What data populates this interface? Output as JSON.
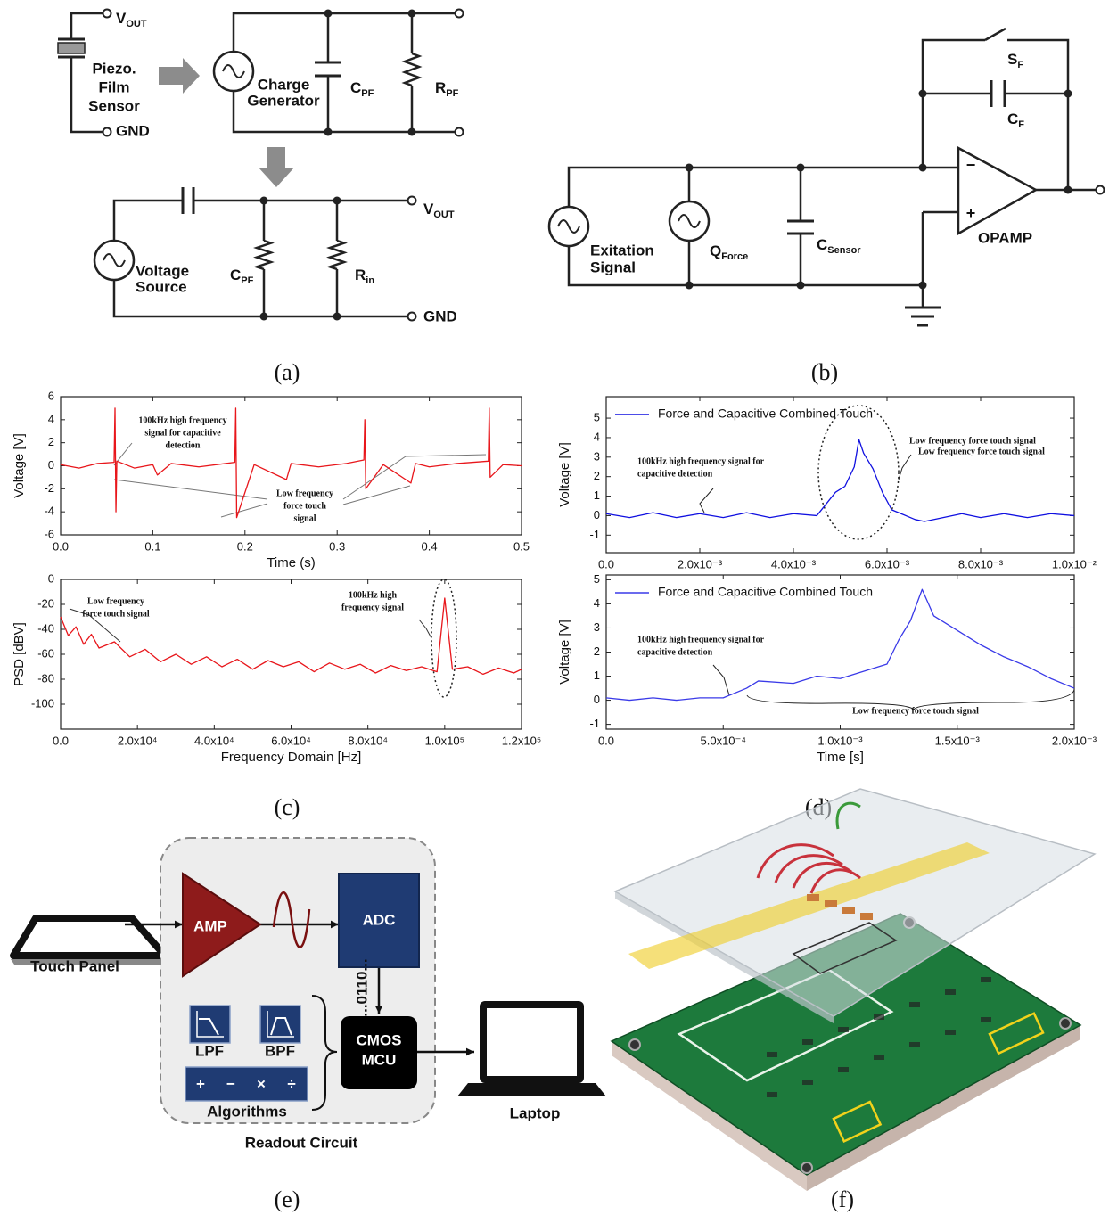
{
  "panels": {
    "a": {
      "label": "(a)",
      "vout_top": {
        "main": "V",
        "sub": "OUT"
      },
      "gnd_top": "GND",
      "sensor": [
        "Piezo.",
        "Film",
        "Sensor"
      ],
      "generator": [
        "Charge",
        "Generator"
      ],
      "cpf_top": {
        "main": "C",
        "sub": "PF"
      },
      "rpf": {
        "main": "R",
        "sub": "PF"
      },
      "source": [
        "Voltage",
        "Source"
      ],
      "cpf_bottom": {
        "main": "C",
        "sub": "PF"
      },
      "rin": {
        "main": "R",
        "sub": "in"
      },
      "vout_bottom": {
        "main": "V",
        "sub": "OUT"
      },
      "gnd_bottom": "GND"
    },
    "b": {
      "label": "(b)",
      "sf": {
        "main": "S",
        "sub": "F"
      },
      "cf": {
        "main": "C",
        "sub": "F"
      },
      "excitation": [
        "Exitation",
        "Signal"
      ],
      "qforce": {
        "main": "Q",
        "sub": "Force"
      },
      "csensor": {
        "main": "C",
        "sub": "Sensor"
      },
      "minus": "−",
      "plus": "+",
      "opamp": "OPAMP"
    },
    "c": {
      "label": "(c)"
    },
    "d": {
      "label": "(d)"
    },
    "e": {
      "label": "(e)",
      "touch_panel": "Touch Panel",
      "amp": "AMP",
      "adc": "ADC",
      "bits": "...0110...",
      "lpf": "LPF",
      "bpf": "BPF",
      "ops": [
        "+",
        "−",
        "×",
        "÷"
      ],
      "algorithms": "Algorithms",
      "mcu": [
        "CMOS",
        "MCU"
      ],
      "laptop": "Laptop",
      "readout": "Readout Circuit"
    },
    "f": {
      "label": "(f)"
    }
  },
  "chart_data": [
    {
      "type": "line",
      "xlabel": "Time (s)",
      "ylabel": "Voltage [V]",
      "xlim": [
        0,
        0.5
      ],
      "ylim": [
        -6,
        6
      ],
      "xticks": [
        {
          "value": 0,
          "label": "0.0"
        },
        0.1,
        0.2,
        0.3,
        0.4,
        0.5
      ],
      "yticks": [
        -6,
        -4,
        -2,
        0,
        2,
        4,
        6
      ],
      "x": [
        0,
        0.02,
        0.04,
        0.058,
        0.059,
        0.06,
        0.061,
        0.08,
        0.1,
        0.105,
        0.12,
        0.15,
        0.189,
        0.19,
        0.191,
        0.21,
        0.245,
        0.25,
        0.28,
        0.31,
        0.329,
        0.33,
        0.331,
        0.35,
        0.38,
        0.385,
        0.4,
        0.43,
        0.464,
        0.465,
        0.466,
        0.48,
        0.5
      ],
      "series": [
        {
          "color": "#e8161b",
          "values": [
            0.1,
            -0.2,
            0.2,
            0.3,
            5,
            -4,
            0.4,
            -0.2,
            0.1,
            -0.8,
            0.2,
            -0.1,
            0.3,
            5,
            -4.5,
            0.1,
            -1.2,
            0.2,
            -0.1,
            0.2,
            0.5,
            4,
            -2,
            0.1,
            -1.5,
            0.2,
            -0.1,
            0.2,
            0.4,
            5,
            -1,
            0.1,
            0
          ]
        }
      ],
      "annotations": [
        [
          "100kHz high frequency",
          "signal for capacitive",
          "detection"
        ],
        [
          "Low frequency",
          "force touch",
          "signal"
        ]
      ]
    },
    {
      "type": "line",
      "xlabel": "Frequency Domain [Hz]",
      "ylabel": "PSD [dBV]",
      "xlim": [
        0,
        120000
      ],
      "ylim": [
        -120,
        0
      ],
      "xticks": [
        {
          "value": 0,
          "label": "0.0"
        },
        {
          "value": 20000,
          "label": "2.0x10⁴"
        },
        {
          "value": 40000,
          "label": "4.0x10⁴"
        },
        {
          "value": 60000,
          "label": "6.0x10⁴"
        },
        {
          "value": 80000,
          "label": "8.0x10⁴"
        },
        {
          "value": 100000,
          "label": "1.0x10⁵"
        },
        {
          "value": 120000,
          "label": "1.2x10⁵"
        }
      ],
      "yticks": [
        -100,
        -80,
        -60,
        -40,
        -20,
        0
      ],
      "x": [
        0,
        2000,
        4000,
        6000,
        8000,
        10000,
        14000,
        18000,
        22000,
        26000,
        30000,
        34000,
        38000,
        42000,
        46000,
        50000,
        54000,
        58000,
        62000,
        66000,
        70000,
        74000,
        78000,
        82000,
        86000,
        90000,
        94000,
        98000,
        100000,
        102000,
        106000,
        110000,
        114000,
        118000,
        120000
      ],
      "series": [
        {
          "color": "#e8161b",
          "values": [
            -30,
            -45,
            -38,
            -52,
            -44,
            -55,
            -50,
            -62,
            -56,
            -66,
            -60,
            -68,
            -62,
            -70,
            -64,
            -72,
            -65,
            -70,
            -66,
            -74,
            -67,
            -72,
            -68,
            -75,
            -69,
            -73,
            -70,
            -74,
            -15,
            -72,
            -70,
            -76,
            -71,
            -75,
            -72
          ]
        }
      ],
      "annotations": [
        [
          "Low frequency",
          "force touch signal"
        ],
        [
          "100kHz high",
          "frequency signal"
        ]
      ]
    },
    {
      "type": "line",
      "ylabel": "Voltage [V]",
      "xlim": [
        0,
        0.01
      ],
      "ylim": [
        -1.9,
        6.1
      ],
      "xticks": [
        {
          "value": 0,
          "label": "0.0"
        },
        {
          "value": 0.002,
          "label": "2.0x10⁻³"
        },
        {
          "value": 0.004,
          "label": "4.0x10⁻³"
        },
        {
          "value": 0.006,
          "label": "6.0x10⁻³"
        },
        {
          "value": 0.008,
          "label": "8.0x10⁻³"
        },
        {
          "value": 0.01,
          "label": "1.0x10⁻²"
        }
      ],
      "yticks": [
        -1,
        0,
        1,
        2,
        3,
        4,
        5
      ],
      "x": [
        0,
        0.0005,
        0.001,
        0.0015,
        0.002,
        0.0025,
        0.003,
        0.0035,
        0.004,
        0.0045,
        0.0047,
        0.0049,
        0.0051,
        0.0053,
        0.0054,
        0.0055,
        0.0057,
        0.0059,
        0.0061,
        0.0063,
        0.0066,
        0.0068,
        0.0072,
        0.0076,
        0.008,
        0.0085,
        0.009,
        0.0095,
        0.01
      ],
      "series": [
        {
          "name": "Force and Capacitive Combined Touch",
          "color": "#1010e0",
          "values": [
            0.1,
            -0.1,
            0.15,
            -0.1,
            0.1,
            -0.1,
            0.15,
            -0.1,
            0.1,
            0,
            0.6,
            1.2,
            1.5,
            2.5,
            3.9,
            3.2,
            2.4,
            1.2,
            0.3,
            0.1,
            -0.2,
            -0.3,
            -0.1,
            0.1,
            -0.1,
            0.1,
            -0.1,
            0.1,
            0
          ]
        }
      ],
      "annotations": [
        [
          "100kHz  high  frequency  signal  for",
          "capacitive detection"
        ],
        [
          "Low frequency force touch signal"
        ],
        [
          "Low frequency force touch signal"
        ]
      ]
    },
    {
      "type": "line",
      "xlabel": "Time [s]",
      "ylabel": "Voltage [V]",
      "xlim": [
        0,
        0.002
      ],
      "ylim": [
        -1.2,
        5.2
      ],
      "xticks": [
        {
          "value": 0,
          "label": "0.0"
        },
        {
          "value": 0.0005,
          "label": "5.0x10⁻⁴"
        },
        {
          "value": 0.001,
          "label": "1.0x10⁻³"
        },
        {
          "value": 0.0015,
          "label": "1.5x10⁻³"
        },
        {
          "value": 0.002,
          "label": "2.0x10⁻³"
        }
      ],
      "yticks": [
        -1,
        0,
        1,
        2,
        3,
        4,
        5
      ],
      "x": [
        0,
        0.0001,
        0.0002,
        0.0003,
        0.0004,
        0.0005,
        0.0006,
        0.00065,
        0.0008,
        0.0009,
        0.001,
        0.0011,
        0.0012,
        0.00125,
        0.0013,
        0.00135,
        0.0014,
        0.0015,
        0.0016,
        0.0017,
        0.0018,
        0.0019,
        0.002
      ],
      "series": [
        {
          "name": "Force and Capacitive Combined Touch",
          "color": "#3a3ae8",
          "values": [
            0.1,
            0,
            0.1,
            0,
            0.1,
            0.1,
            0.5,
            0.8,
            0.7,
            1,
            0.9,
            1.2,
            1.5,
            2.5,
            3.3,
            4.6,
            3.5,
            2.9,
            2.3,
            1.8,
            1.4,
            0.9,
            0.5
          ]
        }
      ],
      "annotations": [
        [
          "100kHz    high    frequency    signal    for",
          "capacitive detection"
        ],
        [
          "Low frequency force touch signal"
        ]
      ]
    }
  ]
}
